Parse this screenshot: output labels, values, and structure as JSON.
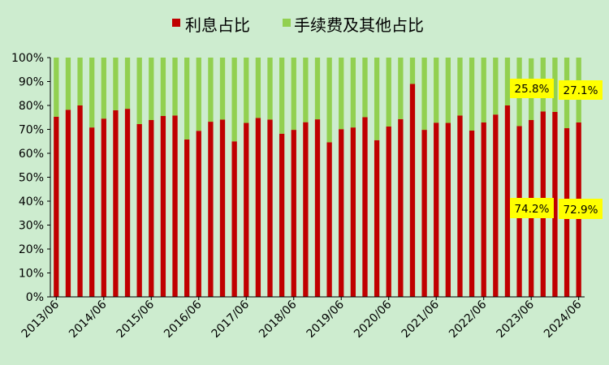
{
  "chart_data": {
    "type": "bar",
    "stacked": true,
    "x": [
      "2013/06",
      "2013/09",
      "2013/12",
      "2014/03",
      "2014/06",
      "2014/09",
      "2014/12",
      "2015/03",
      "2015/06",
      "2015/09",
      "2015/12",
      "2016/03",
      "2016/06",
      "2016/09",
      "2016/12",
      "2017/03",
      "2017/06",
      "2017/09",
      "2017/12",
      "2018/03",
      "2018/06",
      "2018/09",
      "2018/12",
      "2019/03",
      "2019/06",
      "2019/09",
      "2019/12",
      "2020/03",
      "2020/06",
      "2020/09",
      "2020/12",
      "2021/03",
      "2021/06",
      "2021/09",
      "2021/12",
      "2022/03",
      "2022/06",
      "2022/09",
      "2022/12",
      "2023/03",
      "2023/06",
      "2023/09",
      "2023/12",
      "2024/03",
      "2024/06"
    ],
    "tick_labels": [
      "2013/06",
      "2014/06",
      "2015/06",
      "2016/06",
      "2017/06",
      "2018/06",
      "2019/06",
      "2020/06",
      "2021/06",
      "2022/06",
      "2023/06",
      "2024/06"
    ],
    "series": [
      {
        "name": "利息占比",
        "color": "#c00000",
        "values": [
          75.3,
          78.2,
          80.0,
          70.8,
          74.5,
          78.0,
          78.6,
          72.2,
          73.9,
          75.6,
          75.8,
          65.8,
          69.4,
          73.2,
          74.1,
          65.0,
          72.7,
          74.8,
          74.1,
          68.2,
          69.8,
          73.0,
          74.2,
          64.6,
          70.1,
          70.8,
          75.1,
          65.5,
          71.2,
          74.3,
          89.0,
          69.8,
          72.8,
          72.7,
          75.8,
          69.5,
          72.9,
          76.2,
          80.0,
          71.4,
          73.9,
          77.5,
          77.3,
          70.5,
          72.9
        ]
      },
      {
        "name": "手续费及其他占比",
        "color": "#92d050",
        "values": [
          24.7,
          21.8,
          20.0,
          29.2,
          25.5,
          22.0,
          21.4,
          27.8,
          26.1,
          24.4,
          24.2,
          34.2,
          30.6,
          26.8,
          25.9,
          35.0,
          27.3,
          25.2,
          25.9,
          31.8,
          30.2,
          27.0,
          25.8,
          35.4,
          29.9,
          29.2,
          24.9,
          34.5,
          28.8,
          25.7,
          11.0,
          30.2,
          27.2,
          27.3,
          24.2,
          30.5,
          27.1,
          23.8,
          20.0,
          28.6,
          25.8,
          22.5,
          22.7,
          29.5,
          27.1
        ]
      }
    ],
    "y_tick_labels": [
      "0%",
      "10%",
      "20%",
      "30%",
      "40%",
      "50%",
      "60%",
      "70%",
      "80%",
      "90%",
      "100%"
    ],
    "ylim": [
      0,
      100
    ],
    "legend_position": "top-center",
    "annotations": [
      {
        "text": "25.8%",
        "color": "#ffff00"
      },
      {
        "text": "27.1%",
        "color": "#ffff00"
      },
      {
        "text": "74.2%",
        "color": "#ffff00"
      },
      {
        "text": "72.9%",
        "color": "#ffff00"
      }
    ]
  }
}
